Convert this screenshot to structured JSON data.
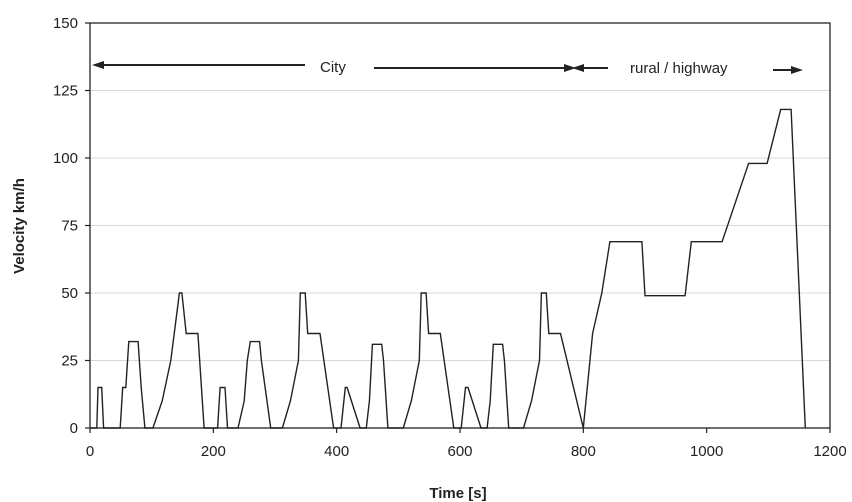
{
  "chart_data": {
    "type": "line",
    "xlabel": "Time [s]",
    "ylabel": "Velocity km/h",
    "xlim": [
      0,
      1200
    ],
    "ylim": [
      0,
      150
    ],
    "xticks": [
      "0",
      "200",
      "400",
      "600",
      "800",
      "1000",
      "1200"
    ],
    "yticks": [
      "0",
      "25",
      "50",
      "75",
      "100",
      "125",
      "150"
    ],
    "grid": "horizontal",
    "series": [
      {
        "x": [
          0,
          11,
          13,
          19,
          22,
          28,
          49,
          53,
          58,
          63,
          78,
          83,
          89,
          93,
          102,
          117,
          131,
          145,
          149,
          156,
          161,
          163,
          175,
          185,
          195,
          207,
          211,
          219,
          223,
          240,
          250,
          255,
          260,
          275,
          278,
          293,
          312,
          325,
          338,
          341,
          349,
          353,
          357,
          368,
          373,
          395,
          403,
          407,
          414,
          417,
          438,
          448,
          453,
          458,
          473,
          476,
          483,
          508,
          521,
          534,
          537,
          545,
          549,
          553,
          564,
          568,
          590,
          598,
          602,
          609,
          613,
          634,
          644,
          649,
          654,
          669,
          672,
          679,
          703,
          716,
          729,
          732,
          740,
          744,
          748,
          758,
          763,
          800,
          815,
          830,
          843,
          848,
          895,
          900,
          965,
          975,
          993,
          1025,
          1068,
          1098,
          1120,
          1123,
          1133,
          1137,
          1160
        ],
        "y": [
          0,
          0,
          15,
          15,
          0,
          0,
          0,
          15,
          15,
          32,
          32,
          15,
          0,
          0,
          0,
          10,
          25,
          50,
          50,
          35,
          35,
          35,
          35,
          0,
          0,
          0,
          15,
          15,
          0,
          0,
          10,
          25,
          32,
          32,
          25,
          0,
          0,
          10,
          25,
          50,
          50,
          35,
          35,
          35,
          35,
          0,
          0,
          0,
          15,
          15,
          0,
          0,
          10,
          31,
          31,
          25,
          0,
          0,
          10,
          25,
          50,
          50,
          35,
          35,
          35,
          35,
          0,
          0,
          0,
          15,
          15,
          0,
          0,
          10,
          31,
          31,
          25,
          0,
          0,
          10,
          25,
          50,
          50,
          35,
          35,
          35,
          35,
          0,
          35,
          50,
          69,
          69,
          69,
          49,
          49,
          69,
          69,
          69,
          98,
          98,
          118,
          118,
          118,
          118,
          0
        ]
      }
    ],
    "annotations": {
      "city": "City",
      "rural": "rural / highway"
    }
  }
}
